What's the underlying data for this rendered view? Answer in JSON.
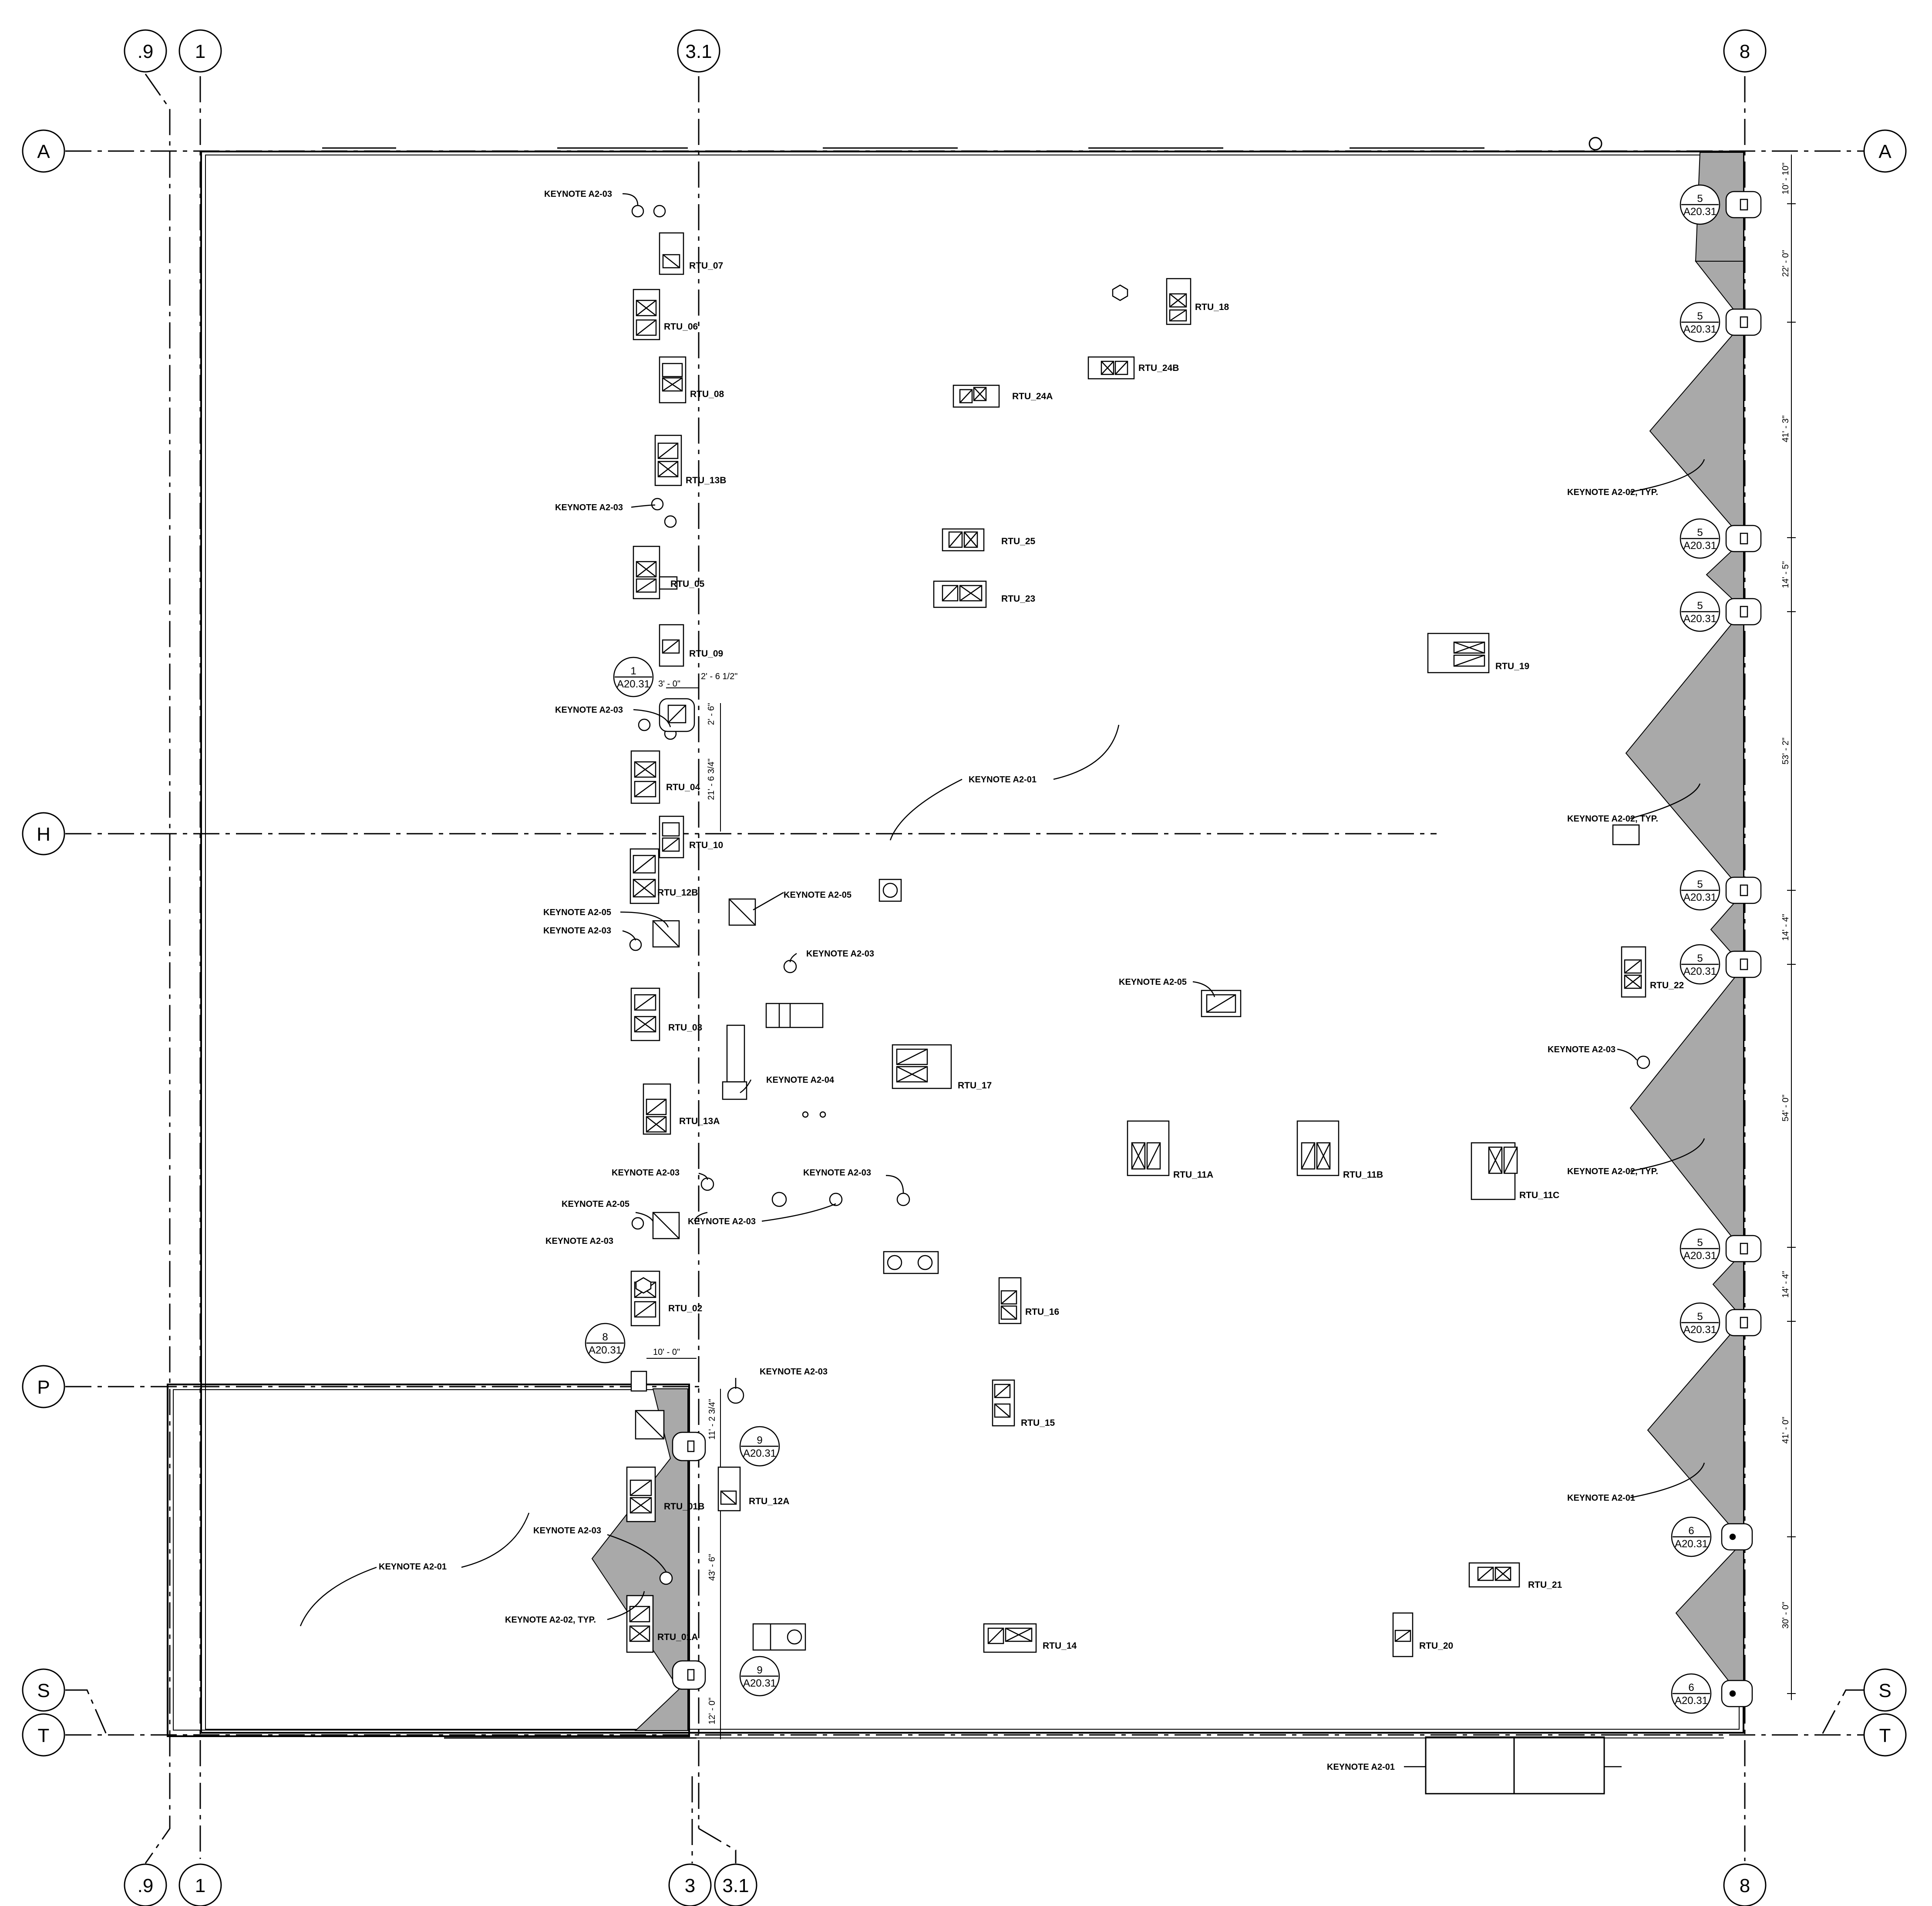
{
  "grid_lines": {
    "top": [
      {
        "label": ".9"
      },
      {
        "label": "1"
      },
      {
        "label": "3.1"
      },
      {
        "label": "8"
      }
    ],
    "bottom": [
      {
        "label": ".9"
      },
      {
        "label": "1"
      },
      {
        "label": "3"
      },
      {
        "label": "3.1"
      },
      {
        "label": "8"
      }
    ],
    "left": [
      {
        "label": "A"
      },
      {
        "label": "H"
      },
      {
        "label": "P"
      },
      {
        "label": "S"
      },
      {
        "label": "T"
      }
    ],
    "right": [
      {
        "label": "A"
      },
      {
        "label": "S"
      },
      {
        "label": "T"
      }
    ]
  },
  "units": [
    {
      "label": "RTU_07"
    },
    {
      "label": "RTU_06"
    },
    {
      "label": "RTU_08"
    },
    {
      "label": "RTU_13B"
    },
    {
      "label": "RTU_05"
    },
    {
      "label": "RTU_09"
    },
    {
      "label": "RTU_04"
    },
    {
      "label": "RTU_10"
    },
    {
      "label": "RTU_12B"
    },
    {
      "label": "RTU_03"
    },
    {
      "label": "RTU_13A"
    },
    {
      "label": "RTU_02"
    },
    {
      "label": "RTU_01B"
    },
    {
      "label": "RTU_01A"
    },
    {
      "label": "RTU_12A"
    },
    {
      "label": "RTU_18"
    },
    {
      "label": "RTU_24B"
    },
    {
      "label": "RTU_24A"
    },
    {
      "label": "RTU_25"
    },
    {
      "label": "RTU_23"
    },
    {
      "label": "RTU_19"
    },
    {
      "label": "RTU_17"
    },
    {
      "label": "RTU_11A"
    },
    {
      "label": "RTU_11B"
    },
    {
      "label": "RTU_11C"
    },
    {
      "label": "RTU_16"
    },
    {
      "label": "RTU_15"
    },
    {
      "label": "RTU_14"
    },
    {
      "label": "RTU_21"
    },
    {
      "label": "RTU_20"
    },
    {
      "label": "RTU_22"
    }
  ],
  "keynotes": [
    {
      "label": "KEYNOTE A2-03"
    },
    {
      "label": "KEYNOTE A2-03"
    },
    {
      "label": "KEYNOTE A2-03"
    },
    {
      "label": "KEYNOTE A2-05"
    },
    {
      "label": "KEYNOTE A2-05"
    },
    {
      "label": "KEYNOTE A2-03"
    },
    {
      "label": "KEYNOTE A2-03"
    },
    {
      "label": "KEYNOTE A2-04"
    },
    {
      "label": "KEYNOTE A2-03"
    },
    {
      "label": "KEYNOTE A2-03"
    },
    {
      "label": "KEYNOTE A2-05"
    },
    {
      "label": "KEYNOTE A2-03"
    },
    {
      "label": "KEYNOTE A2-03"
    },
    {
      "label": "KEYNOTE A2-03"
    },
    {
      "label": "KEYNOTE A2-03"
    },
    {
      "label": "KEYNOTE A2-01"
    },
    {
      "label": "KEYNOTE A2-01"
    },
    {
      "label": "KEYNOTE A2-02, TYP."
    },
    {
      "label": "KEYNOTE A2-05"
    },
    {
      "label": "KEYNOTE A2-02, TYP."
    },
    {
      "label": "KEYNOTE A2-02, TYP."
    },
    {
      "label": "KEYNOTE A2-02, TYP."
    },
    {
      "label": "KEYNOTE A2-03"
    },
    {
      "label": "KEYNOTE A2-01"
    },
    {
      "label": "KEYNOTE A2-01"
    }
  ],
  "section_callouts": [
    {
      "num": "5",
      "sheet": "A20.31"
    },
    {
      "num": "5",
      "sheet": "A20.31"
    },
    {
      "num": "5",
      "sheet": "A20.31"
    },
    {
      "num": "5",
      "sheet": "A20.31"
    },
    {
      "num": "5",
      "sheet": "A20.31"
    },
    {
      "num": "5",
      "sheet": "A20.31"
    },
    {
      "num": "5",
      "sheet": "A20.31"
    },
    {
      "num": "5",
      "sheet": "A20.31"
    },
    {
      "num": "6",
      "sheet": "A20.31"
    },
    {
      "num": "6",
      "sheet": "A20.31"
    },
    {
      "num": "1",
      "sheet": "A20.31"
    },
    {
      "num": "8",
      "sheet": "A20.31"
    },
    {
      "num": "9",
      "sheet": "A20.31"
    },
    {
      "num": "9",
      "sheet": "A20.31"
    }
  ],
  "dimensions": {
    "right": [
      {
        "label": "10' - 10\""
      },
      {
        "label": "22' - 0\""
      },
      {
        "label": "41' - 3\""
      },
      {
        "label": "14' - 5\""
      },
      {
        "label": "53' - 2\""
      },
      {
        "label": "14' - 4\""
      },
      {
        "label": "54' - 0\""
      },
      {
        "label": "14' - 4\""
      },
      {
        "label": "41' - 0\""
      },
      {
        "label": "30' - 0\""
      }
    ],
    "left": [
      {
        "label": "3' - 0\""
      },
      {
        "label": "2' - 6 1/2\""
      },
      {
        "label": "2' - 6\""
      },
      {
        "label": "21' - 6 3/4\""
      },
      {
        "label": "10' - 0\""
      },
      {
        "label": "11' - 2 3/4\""
      },
      {
        "label": "43' - 6\""
      },
      {
        "label": "12' - 0\""
      }
    ]
  },
  "colors": {
    "line": "#000000",
    "shade": "#a9a9a9",
    "background": "#ffffff"
  }
}
